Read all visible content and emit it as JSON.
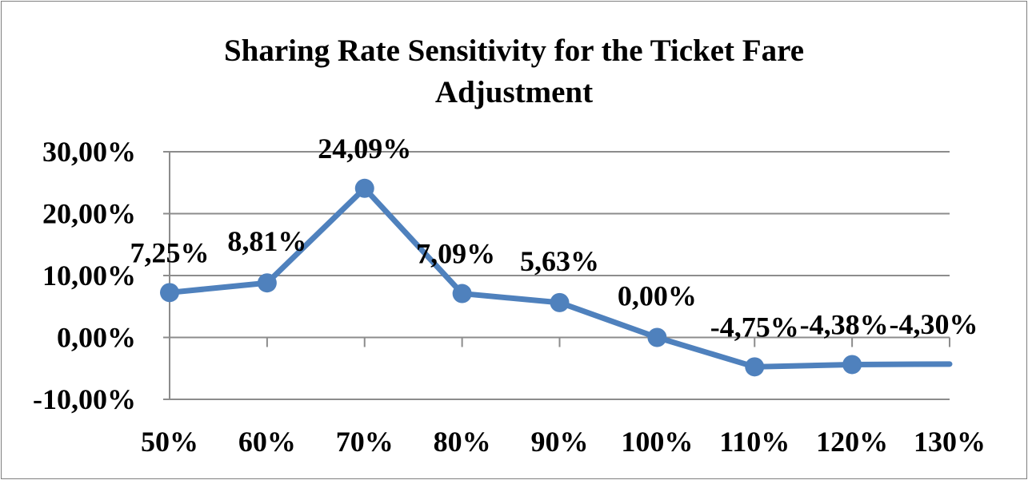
{
  "chart_data": {
    "type": "line",
    "title_line1": "Sharing Rate Sensitivity for the Ticket Fare",
    "title_line2": "Adjustment",
    "categories": [
      "50%",
      "60%",
      "70%",
      "80%",
      "90%",
      "100%",
      "110%",
      "120%",
      "130%"
    ],
    "values": [
      7.25,
      8.81,
      24.09,
      7.09,
      5.63,
      0.0,
      -4.75,
      -4.38,
      -4.3
    ],
    "data_labels": [
      "7,25%",
      "8,81%",
      "24,09%",
      "7,09%",
      "5,63%",
      "0,00%",
      "-4,75%",
      "-4,38%",
      "-4,30%"
    ],
    "y_ticks": [
      30,
      20,
      10,
      0,
      -10
    ],
    "y_tick_labels": [
      "30,00%",
      "20,00%",
      "10,00%",
      "0,00%",
      "-10,00%"
    ],
    "ylim": [
      -10,
      30
    ],
    "grid": true,
    "legend": "none",
    "line_color": "#4f81bd"
  }
}
